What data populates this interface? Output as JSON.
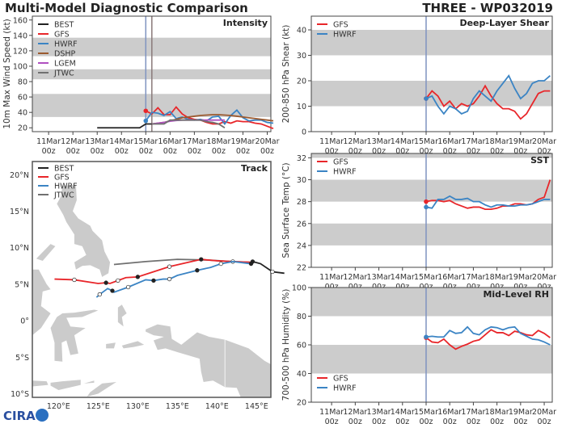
{
  "header": {
    "title": "Multi-Model Diagnostic Comparison",
    "storm": "THREE - WP032019"
  },
  "colors": {
    "BEST": "#222222",
    "GFS": "#e8262a",
    "HWRF": "#3b84c4",
    "DSHP": "#9b5a2f",
    "LGEM": "#b04fc0",
    "JTWC": "#707070",
    "band": "#cccccc",
    "init_line": "#7f93c0"
  },
  "logo": "CIRA",
  "x_ticks": [
    {
      "d": "11Mar",
      "h": "00z"
    },
    {
      "d": "12Mar",
      "h": "00z"
    },
    {
      "d": "13Mar",
      "h": "00z"
    },
    {
      "d": "14Mar",
      "h": "00z"
    },
    {
      "d": "15Mar",
      "h": "00z"
    },
    {
      "d": "16Mar",
      "h": "00z"
    },
    {
      "d": "17Mar",
      "h": "00z"
    },
    {
      "d": "18Mar",
      "h": "00z"
    },
    {
      "d": "19Mar",
      "h": "00z"
    },
    {
      "d": "20Mar",
      "h": "00z"
    }
  ],
  "chart_data": [
    {
      "id": "intensity",
      "type": "line",
      "title": "Intensity",
      "ylabel": "10m Max Wind Speed (kt)",
      "ylim": [
        15,
        165
      ],
      "yticks": [
        20,
        40,
        60,
        80,
        100,
        120,
        140,
        160
      ],
      "bands": [
        [
          34,
          64
        ],
        [
          83,
          96
        ],
        [
          113,
          137
        ]
      ],
      "legend": "top-left",
      "init_lines": [
        "2019-03-15T00",
        "2019-03-15T06"
      ],
      "series": [
        {
          "name": "BEST",
          "start": "2019-03-13T00",
          "values": [
            20,
            20,
            20,
            20,
            20,
            20,
            20,
            20,
            25,
            25
          ]
        },
        {
          "name": "GFS",
          "start": "2019-03-15T00",
          "values": [
            42,
            38,
            46,
            37,
            37,
            47,
            38,
            33,
            31,
            30,
            27,
            25,
            25,
            28,
            26,
            29,
            28,
            28,
            26,
            25,
            22,
            19
          ]
        },
        {
          "name": "HWRF",
          "start": "2019-03-15T00",
          "values": [
            29,
            40,
            39,
            36,
            41,
            32,
            34,
            31,
            30,
            31,
            29,
            34,
            35,
            25,
            36,
            43,
            33,
            29,
            30,
            30,
            27,
            26
          ]
        },
        {
          "name": "DSHP",
          "start": "2019-03-15T06",
          "values": [
            25,
            26,
            27,
            29,
            31,
            33,
            34,
            35,
            36,
            36.5,
            37,
            37,
            36.5,
            36,
            35,
            34,
            33,
            32,
            31,
            30,
            29
          ]
        },
        {
          "name": "LGEM",
          "start": "2019-03-15T06",
          "values": [
            25,
            26,
            27,
            28.5,
            29.5,
            30,
            30,
            30,
            30,
            30,
            30,
            30,
            30
          ]
        },
        {
          "name": "JTWC",
          "start": "2019-03-15T06",
          "values": [
            25,
            25,
            25,
            30,
            30,
            30,
            30,
            30,
            30,
            28,
            27,
            25,
            20
          ]
        }
      ]
    },
    {
      "id": "shear",
      "type": "line",
      "title": "Deep-Layer Shear",
      "ylabel": "200-850 hPa Shear (kt)",
      "ylim": [
        0,
        45.4
      ],
      "yticks": [
        0,
        10,
        20,
        30,
        40
      ],
      "bands": [
        [
          10,
          20
        ],
        [
          30,
          40
        ]
      ],
      "legend": "top-left",
      "init_lines": [
        "2019-03-15T00"
      ],
      "series": [
        {
          "name": "GFS",
          "start": "2019-03-15T00",
          "values": [
            13,
            16,
            14,
            10,
            12,
            9,
            11,
            10,
            11,
            14,
            18,
            14,
            11,
            9,
            9,
            8,
            5,
            7,
            11,
            15,
            16,
            16
          ]
        },
        {
          "name": "HWRF",
          "start": "2019-03-15T00",
          "values": [
            13,
            14,
            10,
            7,
            10,
            9,
            7,
            8,
            13,
            16,
            14,
            12,
            16,
            19,
            22,
            17,
            13,
            15,
            19,
            20,
            20,
            22
          ]
        }
      ]
    },
    {
      "id": "sst",
      "type": "line",
      "title": "SST",
      "ylabel": "Sea Surface Temp (°C)",
      "ylim": [
        22,
        32.4
      ],
      "yticks": [
        22,
        24,
        26,
        28,
        30,
        32
      ],
      "bands": [
        [
          24,
          26
        ],
        [
          28,
          30
        ],
        [
          32,
          32.4
        ]
      ],
      "legend": "top-left",
      "init_lines": [
        "2019-03-15T00"
      ],
      "series": [
        {
          "name": "GFS",
          "start": "2019-03-15T00",
          "values": [
            28,
            28.1,
            28.1,
            28,
            28.1,
            27.8,
            27.6,
            27.4,
            27.5,
            27.5,
            27.3,
            27.3,
            27.4,
            27.6,
            27.6,
            27.8,
            27.8,
            27.7,
            27.8,
            28.2,
            28.4,
            30
          ]
        },
        {
          "name": "HWRF",
          "start": "2019-03-15T00",
          "values": [
            27.5,
            27.4,
            28.2,
            28.2,
            28.5,
            28.2,
            28.2,
            28.3,
            28,
            28,
            27.7,
            27.5,
            27.7,
            27.7,
            27.6,
            27.6,
            27.7,
            27.7,
            27.8,
            28,
            28.2,
            28.2
          ]
        }
      ]
    },
    {
      "id": "rh",
      "type": "line",
      "title": "Mid-Level RH",
      "ylabel": "700-500 hPa Humidity (%)",
      "ylim": [
        20,
        100
      ],
      "yticks": [
        20,
        40,
        60,
        80,
        100
      ],
      "bands": [
        [
          40,
          60
        ],
        [
          80,
          100
        ]
      ],
      "legend": "bottom-left",
      "init_lines": [
        "2019-03-15T00"
      ],
      "series": [
        {
          "name": "GFS",
          "start": "2019-03-15T00",
          "values": [
            65,
            62,
            61.5,
            64,
            60,
            57,
            59,
            60.5,
            62.5,
            63.5,
            67,
            70.5,
            68.5,
            68.5,
            66.5,
            69.5,
            68.5,
            67,
            66.5,
            70,
            68,
            65
          ]
        },
        {
          "name": "HWRF",
          "start": "2019-03-15T00",
          "values": [
            65.5,
            66,
            65.5,
            65.5,
            70,
            68,
            68.5,
            72.5,
            68,
            67,
            70.5,
            72.5,
            72,
            70.5,
            72,
            72.5,
            68,
            66,
            64,
            63.5,
            62,
            60
          ]
        }
      ]
    },
    {
      "id": "track",
      "type": "map",
      "title": "Track",
      "lon_ticks": [
        "120°E",
        "125°E",
        "130°E",
        "135°E",
        "140°E",
        "145°E"
      ],
      "lat_ticks": [
        "20°N",
        "15°N",
        "10°N",
        "5°N",
        "0°",
        "5°S",
        "10°S"
      ],
      "legend": "top-left",
      "series": [
        {
          "name": "BEST",
          "points": [
            [
              148.5,
              6.5
            ],
            [
              147,
              6.7
            ],
            [
              145.5,
              7.8
            ],
            [
              144.5,
              8.1
            ]
          ]
        },
        {
          "name": "GFS",
          "points": [
            [
              119.5,
              5.7
            ],
            [
              122,
              5.6
            ],
            [
              125,
              5.1
            ],
            [
              126,
              5.2
            ],
            [
              126.5,
              5.1
            ],
            [
              127.5,
              5.5
            ],
            [
              128.5,
              5.9
            ],
            [
              130,
              6.0
            ],
            [
              132,
              6.7
            ],
            [
              134,
              7.4
            ],
            [
              136,
              7.9
            ],
            [
              138,
              8.4
            ],
            [
              140,
              8.2
            ],
            [
              142,
              8.1
            ],
            [
              144.3,
              8.0
            ]
          ]
        },
        {
          "name": "HWRF",
          "points": [
            [
              124.8,
              3.2
            ],
            [
              125.2,
              3.6
            ],
            [
              126.2,
              4.4
            ],
            [
              126.8,
              4.1
            ],
            [
              127,
              3.9
            ],
            [
              128.8,
              4.6
            ],
            [
              131,
              5.6
            ],
            [
              132,
              5.5
            ],
            [
              133.2,
              5.7
            ],
            [
              134,
              5.7
            ],
            [
              135,
              6.2
            ],
            [
              137.5,
              6.9
            ],
            [
              139.2,
              7.3
            ],
            [
              140.5,
              7.8
            ],
            [
              142,
              8.1
            ],
            [
              144.3,
              7.8
            ]
          ]
        },
        {
          "name": "JTWC",
          "points": [
            [
              127,
              7.7
            ],
            [
              131,
              8.1
            ],
            [
              135,
              8.4
            ],
            [
              139,
              8.3
            ],
            [
              142,
              8.1
            ],
            [
              144.3,
              8.0
            ]
          ]
        }
      ]
    }
  ]
}
